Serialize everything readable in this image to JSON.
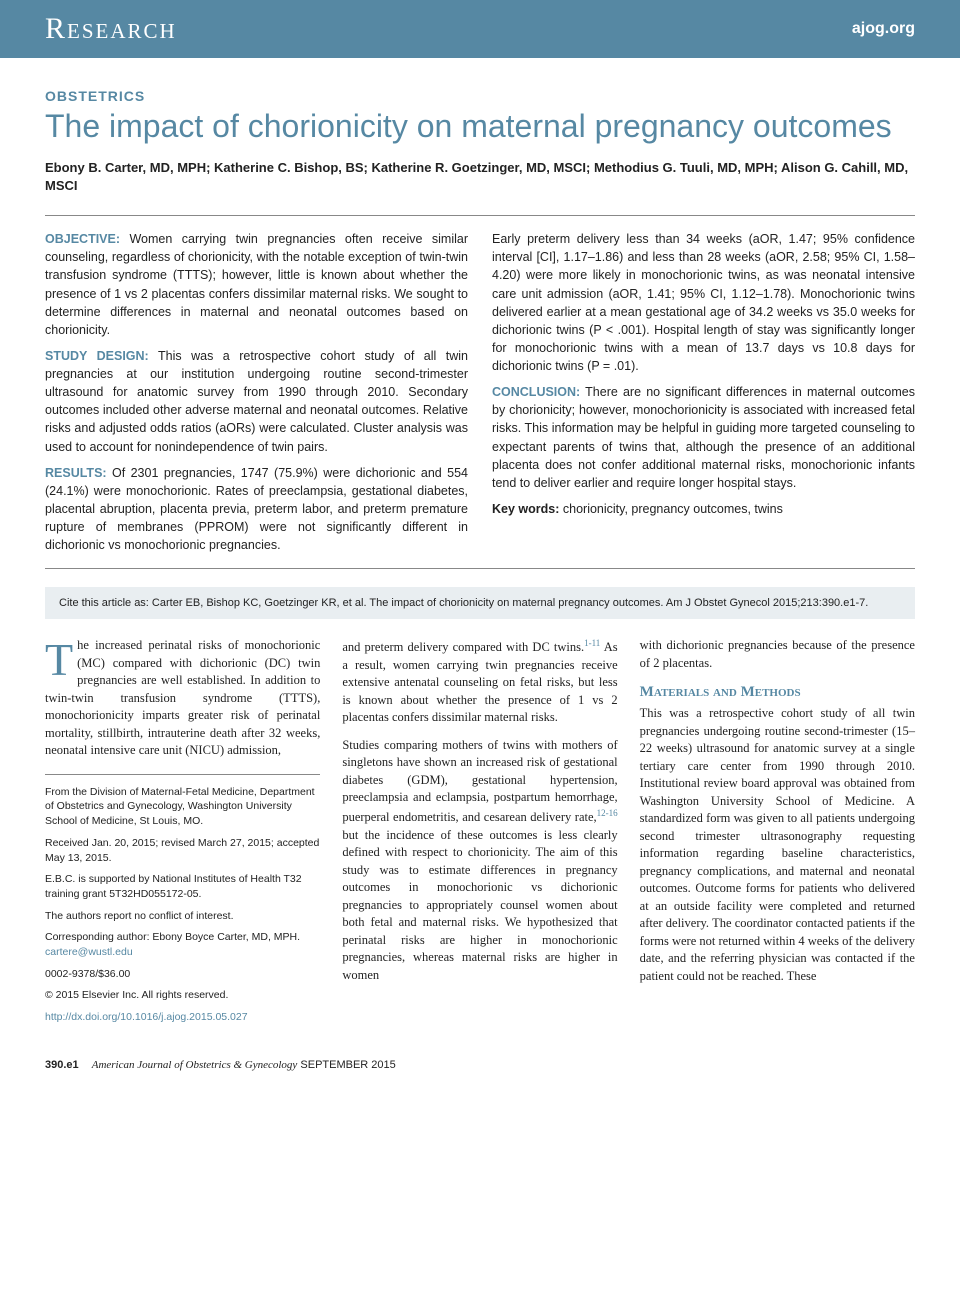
{
  "header": {
    "section": "Research",
    "site": "ajog.org"
  },
  "article": {
    "category": "OBSTETRICS",
    "title": "The impact of chorionicity on maternal pregnancy outcomes",
    "authors": "Ebony B. Carter, MD, MPH; Katherine C. Bishop, BS; Katherine R. Goetzinger, MD, MSCI; Methodius G. Tuuli, MD, MPH; Alison G. Cahill, MD, MSCI"
  },
  "abstract": {
    "objective_label": "OBJECTIVE:",
    "objective": "Women carrying twin pregnancies often receive similar counseling, regardless of chorionicity, with the notable exception of twin-twin transfusion syndrome (TTTS); however, little is known about whether the presence of 1 vs 2 placentas confers dissimilar maternal risks. We sought to determine differences in maternal and neonatal outcomes based on chorionicity.",
    "design_label": "STUDY DESIGN:",
    "design": "This was a retrospective cohort study of all twin pregnancies at our institution undergoing routine second-trimester ultrasound for anatomic survey from 1990 through 2010. Secondary outcomes included other adverse maternal and neonatal outcomes. Relative risks and adjusted odds ratios (aORs) were calculated. Cluster analysis was used to account for nonindependence of twin pairs.",
    "results_label": "RESULTS:",
    "results_a": "Of 2301 pregnancies, 1747 (75.9%) were dichorionic and 554 (24.1%) were monochorionic. Rates of preeclampsia, gestational diabetes, placental abruption, placenta previa, preterm labor, and preterm premature rupture of membranes (PPROM) were not significantly different in dichorionic vs monochorionic pregnancies.",
    "results_b": "Early preterm delivery less than 34 weeks (aOR, 1.47; 95% confidence interval [CI], 1.17–1.86) and less than 28 weeks (aOR, 2.58; 95% CI, 1.58–4.20) were more likely in monochorionic twins, as was neonatal intensive care unit admission (aOR, 1.41; 95% CI, 1.12–1.78). Monochorionic twins delivered earlier at a mean gestational age of 34.2 weeks vs 35.0 weeks for dichorionic twins (P < .001). Hospital length of stay was significantly longer for monochorionic twins with a mean of 13.7 days vs 10.8 days for dichorionic twins (P = .01).",
    "conclusion_label": "CONCLUSION:",
    "conclusion": "There are no significant differences in maternal outcomes by chorionicity; however, monochorionicity is associated with increased fetal risks. This information may be helpful in guiding more targeted counseling to expectant parents of twins that, although the presence of an additional placenta does not confer additional maternal risks, monochorionic infants tend to deliver earlier and require longer hospital stays.",
    "keywords_label": "Key words:",
    "keywords": "chorionicity, pregnancy outcomes, twins"
  },
  "citation": "Cite this article as: Carter EB, Bishop KC, Goetzinger KR, et al. The impact of chorionicity on maternal pregnancy outcomes. Am J Obstet Gynecol 2015;213:390.e1-7.",
  "body": {
    "p1a": "The increased perinatal risks of monochorionic (MC) compared with dichorionic (DC) twin pregnancies are well established. In addition to twin-twin transfusion syndrome (TTTS), monochorionicity imparts greater risk of perinatal mortality, stillbirth, intrauterine death after 32 weeks, neonatal intensive care unit (NICU) admission,",
    "p1b": "and preterm delivery compared with DC twins.",
    "ref1": "1-11",
    "p1c": " As a result, women carrying twin pregnancies receive extensive antenatal counseling on fetal risks, but less is known about whether the presence of 1 vs 2 placentas confers dissimilar maternal risks.",
    "p2a": "Studies comparing mothers of twins with mothers of singletons have shown an increased risk of gestational diabetes (GDM), gestational hypertension, preeclampsia and eclampsia, postpartum hemorrhage, puerperal endometritis, and cesarean delivery rate,",
    "ref2": "12-16",
    "p2b": " but the incidence of these outcomes is less clearly defined with respect to chorionicity. The aim of this study was to estimate differences in pregnancy outcomes in monochorionic vs dichorionic pregnancies to appropriately counsel women about both fetal and maternal risks. We hypothesized that perinatal risks are higher in monochorionic pregnancies, whereas maternal risks are higher in women",
    "p2c": "with dichorionic pregnancies because of the presence of 2 placentas.",
    "methods_head": "Materials and Methods",
    "p3": "This was a retrospective cohort study of all twin pregnancies undergoing routine second-trimester (15–22 weeks) ultrasound for anatomic survey at a single tertiary care center from 1990 through 2010. Institutional review board approval was obtained from Washington University School of Medicine. A standardized form was given to all patients undergoing second trimester ultrasonography requesting information regarding baseline characteristics, pregnancy complications, and maternal and neonatal outcomes. Outcome forms for patients who delivered at an outside facility were completed and returned after delivery. The coordinator contacted patients if the forms were not returned within 4 weeks of the delivery date, and the referring physician was contacted if the patient could not be reached. These"
  },
  "affil": {
    "from": "From the Division of Maternal-Fetal Medicine, Department of Obstetrics and Gynecology, Washington University School of Medicine, St Louis, MO.",
    "received": "Received Jan. 20, 2015; revised March 27, 2015; accepted May 13, 2015.",
    "support": "E.B.C. is supported by National Institutes of Health T32 training grant 5T32HD055172-05.",
    "conflict": "The authors report no conflict of interest.",
    "corresponding": "Corresponding author: Ebony Boyce Carter, MD, MPH. ",
    "email": "cartere@wustl.edu",
    "issn": "0002-9378/$36.00",
    "copyright": "© 2015 Elsevier Inc. All rights reserved.",
    "doi": "http://dx.doi.org/10.1016/j.ajog.2015.05.027"
  },
  "footer": {
    "page": "390.e1",
    "journal": "American Journal of Obstetrics & Gynecology",
    "issue": "SEPTEMBER 2015"
  },
  "colors": {
    "brand": "#5688a3",
    "citation_bg": "#e9eef1",
    "text": "#222222"
  }
}
